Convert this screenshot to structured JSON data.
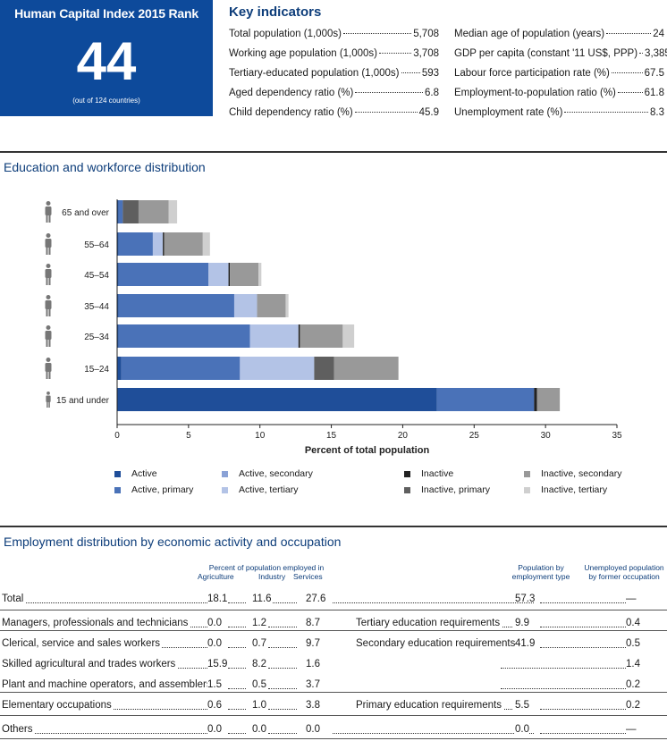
{
  "rank": {
    "title": "Human Capital Index 2015 Rank",
    "value": "44",
    "subtitle": "(out of 124 countries)"
  },
  "key_indicators": {
    "title": "Key indicators",
    "left": [
      {
        "label": "Total population (1,000s)",
        "value": "5,708"
      },
      {
        "label": "Working age population (1,000s)",
        "value": "3,708"
      },
      {
        "label": "Tertiary-educated population (1,000s)",
        "value": "593"
      },
      {
        "label": "Aged dependency ratio (%)",
        "value": "6.8"
      },
      {
        "label": "Child dependency ratio (%)",
        "value": "45.9"
      }
    ],
    "right": [
      {
        "label": "Median age of population (years)",
        "value": "24"
      },
      {
        "label": "GDP per capita (constant '11 US$, PPP)",
        "value": "3,385"
      },
      {
        "label": "Labour force participation rate (%)",
        "value": "67.5"
      },
      {
        "label": "Employment-to-population ratio (%)",
        "value": "61.8"
      },
      {
        "label": "Unemployment rate (%)",
        "value": "8.3"
      }
    ]
  },
  "education_title": "Education and workforce distribution",
  "employment_title": "Employment distribution by economic activity and occupation",
  "colors": {
    "active": "#1f4e99",
    "active_primary": "#4a72b8",
    "active_secondary": "#8aa2d6",
    "active_tertiary": "#b3c3e6",
    "inactive": "#222222",
    "inactive_primary": "#5f5f5f",
    "inactive_secondary": "#999999",
    "inactive_tertiary": "#cfcfcf"
  },
  "chart_data": {
    "type": "bar",
    "orientation": "horizontal",
    "stacked": true,
    "categories": [
      "65 and over",
      "55–64",
      "45–54",
      "35–44",
      "25–34",
      "15–24",
      "15 and under"
    ],
    "series": [
      {
        "name": "Active",
        "key": "active",
        "values": [
          0.1,
          0.1,
          0.1,
          0.1,
          0.1,
          0.3,
          22.4
        ]
      },
      {
        "name": "Active, primary",
        "key": "active_primary",
        "values": [
          0.3,
          2.4,
          6.3,
          8.1,
          9.2,
          8.3,
          6.8
        ]
      },
      {
        "name": "Active, secondary",
        "key": "active_secondary",
        "values": [
          0.0,
          0.0,
          0.0,
          0.0,
          0.0,
          0.0,
          0.0
        ]
      },
      {
        "name": "Active, tertiary",
        "key": "active_tertiary",
        "values": [
          0.0,
          0.7,
          1.4,
          1.6,
          3.4,
          5.2,
          0.0
        ]
      },
      {
        "name": "Inactive",
        "key": "inactive",
        "values": [
          0.0,
          0.1,
          0.1,
          0.0,
          0.1,
          0.0,
          0.2
        ]
      },
      {
        "name": "Inactive, primary",
        "key": "inactive_primary",
        "values": [
          1.1,
          0.0,
          0.0,
          0.0,
          0.0,
          1.4,
          0.0
        ]
      },
      {
        "name": "Inactive, secondary",
        "key": "inactive_secondary",
        "values": [
          2.1,
          2.7,
          2.0,
          2.0,
          3.0,
          4.5,
          1.6
        ]
      },
      {
        "name": "Inactive, tertiary",
        "key": "inactive_tertiary",
        "values": [
          0.6,
          0.5,
          0.2,
          0.2,
          0.8,
          0.0,
          0.0
        ]
      }
    ],
    "xlabel": "Percent of total population",
    "xlim": [
      0,
      35
    ],
    "xticks": [
      0,
      5,
      10,
      15,
      20,
      25,
      30,
      35
    ],
    "legend": "bottom",
    "grid": false
  },
  "employment": {
    "head_pct": "Percent of population employed in",
    "head_agri": "Agriculture",
    "head_ind": "Industry",
    "head_serv": "Services",
    "head_emp_line1": "Population by",
    "head_emp_line2": "employment type",
    "head_unemp_line1": "Unemployed population",
    "head_unemp_line2": "by former occupation",
    "rows": [
      {
        "label": "Total",
        "agri": "18.1",
        "ind": "11.6",
        "serv": "27.6",
        "emp_label": "",
        "emp": "57.3",
        "unemp": "—"
      },
      {
        "label": "Managers, professionals and technicians",
        "agri": "0.0",
        "ind": "1.2",
        "serv": "8.7",
        "emp_label": "Tertiary education requirements",
        "emp": "9.9",
        "unemp": "0.4"
      },
      {
        "label": "Clerical, service and sales workers",
        "agri": "0.0",
        "ind": "0.7",
        "serv": "9.7",
        "emp_label": "Secondary education requirements",
        "emp": "41.9",
        "unemp": "0.5"
      },
      {
        "label": "Skilled agricultural and trades workers",
        "agri": "15.9",
        "ind": "8.2",
        "serv": "1.6",
        "emp_label": "",
        "emp": "",
        "unemp": "1.4"
      },
      {
        "label": "Plant and machine operators, and assemblers",
        "agri": "1.5",
        "ind": "0.5",
        "serv": "3.7",
        "emp_label": "",
        "emp": "",
        "unemp": "0.2"
      },
      {
        "label": "Elementary occupations",
        "agri": "0.6",
        "ind": "1.0",
        "serv": "3.8",
        "emp_label": "Primary education requirements",
        "emp": "5.5",
        "unemp": "0.2"
      },
      {
        "label": "Others",
        "agri": "0.0",
        "ind": "0.0",
        "serv": "0.0",
        "emp_label": "",
        "emp": "0.0",
        "unemp": "—"
      }
    ]
  }
}
